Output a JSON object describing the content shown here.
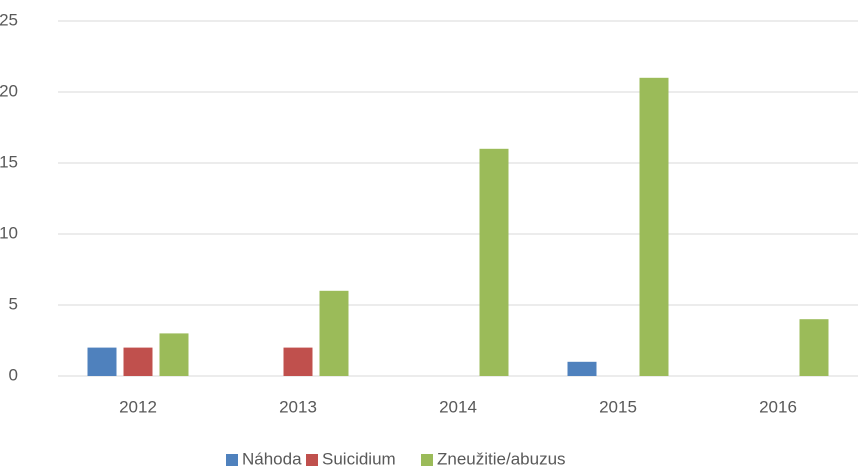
{
  "chart_data": {
    "type": "bar",
    "categories": [
      "2012",
      "2013",
      "2014",
      "2015",
      "2016"
    ],
    "series": [
      {
        "name": "Náhoda",
        "color": "#4f81bd",
        "values": [
          2,
          0,
          0,
          1,
          0
        ]
      },
      {
        "name": "Suicidium",
        "color": "#c0504d",
        "values": [
          2,
          2,
          0,
          0,
          0
        ]
      },
      {
        "name": "Zneužitie/abuzus",
        "color": "#9bbb59",
        "values": [
          3,
          6,
          16,
          21,
          4
        ]
      }
    ],
    "ylim": [
      0,
      25
    ],
    "yticks": [
      0,
      5,
      10,
      15,
      20,
      25
    ],
    "grid": true,
    "legend": "bottom"
  }
}
